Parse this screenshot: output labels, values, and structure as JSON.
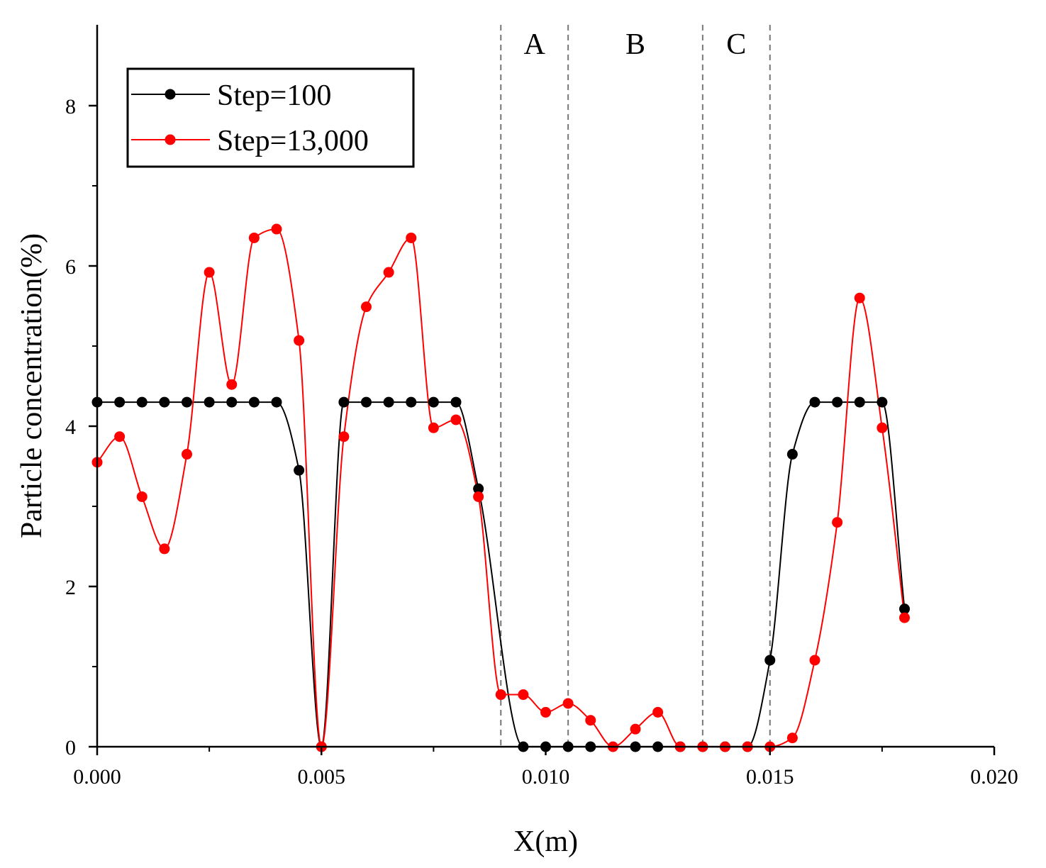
{
  "chart_data": {
    "type": "line",
    "title": "",
    "xlabel": "X(m)",
    "ylabel": "Particle concentration(%)",
    "xlim": [
      0.0,
      0.02
    ],
    "ylim": [
      0,
      9
    ],
    "x_ticks": [
      0.0,
      0.005,
      0.01,
      0.015,
      0.02
    ],
    "x_tick_labels": [
      "0.000",
      "0.005",
      "0.010",
      "0.015",
      "0.020"
    ],
    "y_ticks": [
      0,
      2,
      4,
      6,
      8
    ],
    "y_tick_labels": [
      "0",
      "2",
      "4",
      "6",
      "8"
    ],
    "grid": false,
    "legend_position": "top-left",
    "regions": [
      {
        "label": "A",
        "x_start": 0.009,
        "x_end": 0.0105
      },
      {
        "label": "B",
        "x_start": 0.0105,
        "x_end": 0.0135
      },
      {
        "label": "C",
        "x_start": 0.0135,
        "x_end": 0.015
      }
    ],
    "region_boundaries": [
      0.009,
      0.0105,
      0.0135,
      0.015
    ],
    "series": [
      {
        "name": "Step=100",
        "color": "#000000",
        "x": [
          0.0,
          0.0005,
          0.001,
          0.0015,
          0.002,
          0.0025,
          0.003,
          0.0035,
          0.004,
          0.0045,
          0.005,
          0.0055,
          0.006,
          0.0065,
          0.007,
          0.0075,
          0.008,
          0.0085,
          0.0095,
          0.01,
          0.0105,
          0.011,
          0.012,
          0.0125,
          0.013,
          0.0135,
          0.014,
          0.0145,
          0.015,
          0.0155,
          0.016,
          0.0165,
          0.017,
          0.0175,
          0.018
        ],
        "values": [
          4.3,
          4.3,
          4.3,
          4.3,
          4.3,
          4.3,
          4.3,
          4.3,
          4.3,
          3.45,
          0.0,
          4.3,
          4.3,
          4.3,
          4.3,
          4.3,
          4.3,
          3.22,
          0.0,
          0.0,
          0.0,
          0.0,
          0.0,
          0.0,
          0.0,
          0.0,
          0.0,
          0.0,
          1.08,
          3.65,
          4.3,
          4.3,
          4.3,
          4.3,
          1.72
        ]
      },
      {
        "name": "Step=13,000",
        "color": "#ff0000",
        "x": [
          0.0,
          0.0005,
          0.001,
          0.0015,
          0.002,
          0.0025,
          0.003,
          0.0035,
          0.004,
          0.0045,
          0.005,
          0.0055,
          0.006,
          0.0065,
          0.007,
          0.0075,
          0.008,
          0.0085,
          0.009,
          0.0095,
          0.01,
          0.0105,
          0.011,
          0.0115,
          0.012,
          0.0125,
          0.013,
          0.0135,
          0.014,
          0.0145,
          0.015,
          0.0155,
          0.016,
          0.0165,
          0.017,
          0.0175,
          0.018
        ],
        "values": [
          3.55,
          3.87,
          3.12,
          2.47,
          3.65,
          5.92,
          4.52,
          6.35,
          6.46,
          5.07,
          0.0,
          3.87,
          5.49,
          5.92,
          6.35,
          3.98,
          4.08,
          3.12,
          0.65,
          0.65,
          0.43,
          0.54,
          0.33,
          0.0,
          0.22,
          0.43,
          0.0,
          0.0,
          0.0,
          0.0,
          0.0,
          0.11,
          1.08,
          2.8,
          5.6,
          3.98,
          1.61
        ]
      }
    ]
  }
}
